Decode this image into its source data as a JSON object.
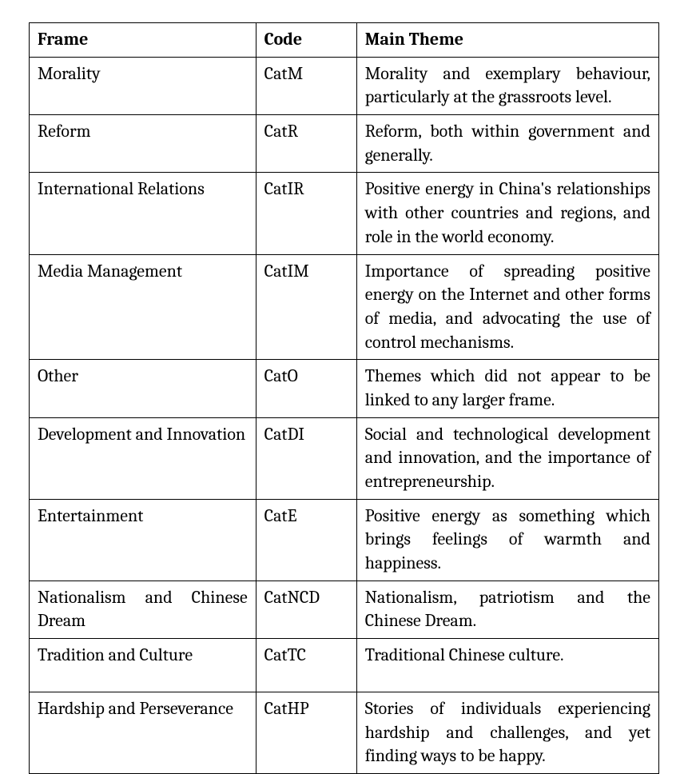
{
  "table": {
    "border_color": "#000000",
    "background_color": "#ffffff",
    "text_color": "#000000",
    "font_size_pt": 17,
    "columns": [
      {
        "key": "frame",
        "header": "Frame",
        "width_pct": 36,
        "align": "justify"
      },
      {
        "key": "code",
        "header": "Code",
        "width_pct": 16,
        "align": "left"
      },
      {
        "key": "theme",
        "header": "Main Theme",
        "width_pct": 48,
        "align": "justify"
      }
    ],
    "rows": [
      {
        "frame": "Morality",
        "code": "CatM",
        "theme": "Morality and exemplary behaviour, particularly at the grassroots level."
      },
      {
        "frame": "Reform",
        "code": "CatR",
        "theme": "Reform, both within government and generally."
      },
      {
        "frame": "International Relations",
        "code": "CatIR",
        "theme": "Positive energy in China's relationships with other countries and regions, and role in the world economy."
      },
      {
        "frame": "Media Management",
        "code": "CatIM",
        "theme": "Importance of spreading positive energy on the Internet and other forms of media, and advocating the use of control mechanisms."
      },
      {
        "frame": "Other",
        "code": "CatO",
        "theme": "Themes which did not appear to be linked to any larger frame."
      },
      {
        "frame": "Development and Innovation",
        "code": "CatDI",
        "theme": "Social and technological development and innovation, and the importance of entrepreneurship."
      },
      {
        "frame": "Entertainment",
        "code": "CatE",
        "theme": "Positive energy as something which brings feelings of warmth and happiness."
      },
      {
        "frame": "Nationalism and Chinese Dream",
        "code": "CatNCD",
        "theme": "Nationalism, patriotism and the Chinese Dream."
      },
      {
        "frame": "Tradition and Culture",
        "code": "CatTC",
        "theme": "Traditional Chinese culture.",
        "extra_vspace": true
      },
      {
        "frame": "Hardship and Perseverance",
        "code": "CatHP",
        "theme": "Stories of individuals experiencing hardship and challenges, and yet finding ways to be happy."
      }
    ]
  }
}
